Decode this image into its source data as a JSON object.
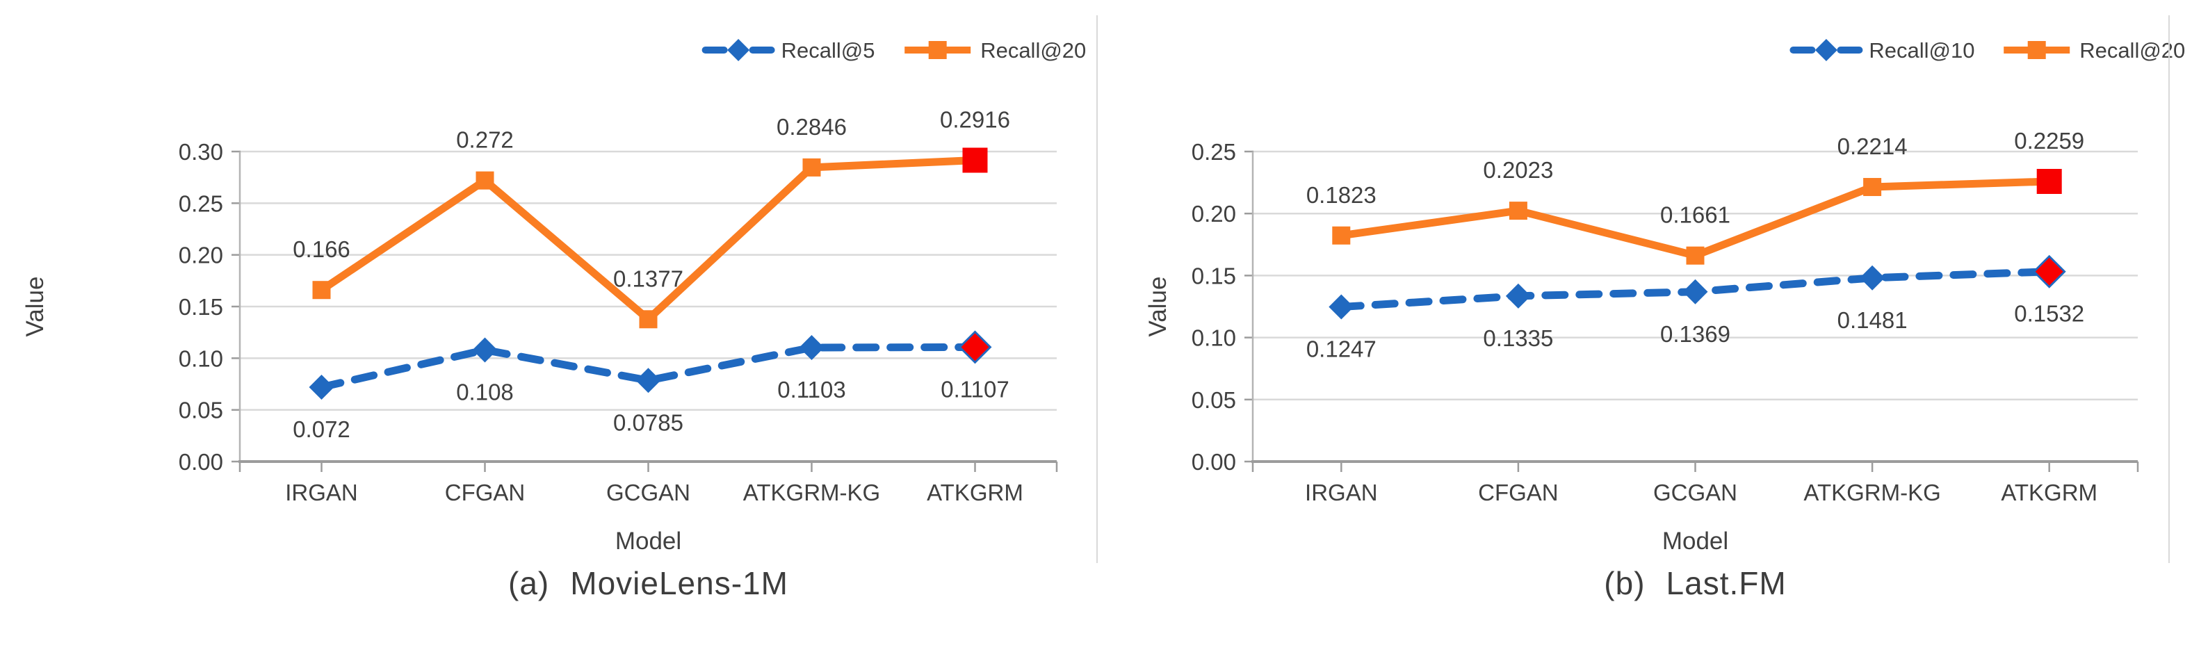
{
  "figure": {
    "background": "#ffffff",
    "divider_color": "#d9d9d9",
    "text_color": "#404040",
    "grid_color": "#d9d9d9",
    "axis_color": "#9c9c9c",
    "highlight_color": "#f80000",
    "blue": "#2069c0",
    "orange": "#fa7d22"
  },
  "chart_data": [
    {
      "type": "line",
      "caption_prefix": "(a)",
      "caption_title": "MovieLens-1M",
      "xlabel": "Model",
      "ylabel": "Value",
      "categories": [
        "IRGAN",
        "CFGAN",
        "GCGAN",
        "ATKGRM-KG",
        "ATKGRM"
      ],
      "ylim": [
        0.0,
        0.3
      ],
      "yticks": [
        0.0,
        0.05,
        0.1,
        0.15,
        0.2,
        0.25,
        0.3
      ],
      "ytick_labels": [
        "0.00",
        "0.05",
        "0.10",
        "0.15",
        "0.20",
        "0.25",
        "0.30"
      ],
      "grid": true,
      "legend_position": "top-right",
      "series": [
        {
          "name": "Recall@5",
          "color": "#2069c0",
          "line_style": "dashed",
          "marker": "diamond",
          "highlight_last": true,
          "highlight_color": "#f80000",
          "label_side": "below",
          "values": [
            0.072,
            0.108,
            0.0785,
            0.1103,
            0.1107
          ],
          "data_labels": [
            "0.072",
            "0.108",
            "0.0785",
            "0.1103",
            "0.1107"
          ]
        },
        {
          "name": "Recall@20",
          "color": "#fa7d22",
          "line_style": "solid",
          "marker": "square",
          "highlight_last": true,
          "highlight_color": "#f80000",
          "label_side": "above",
          "values": [
            0.166,
            0.272,
            0.1377,
            0.2846,
            0.2916
          ],
          "data_labels": [
            "0.166",
            "0.272",
            "0.1377",
            "0.2846",
            "0.2916"
          ]
        }
      ]
    },
    {
      "type": "line",
      "caption_prefix": "(b)",
      "caption_title": "Last.FM",
      "xlabel": "Model",
      "ylabel": "Value",
      "categories": [
        "IRGAN",
        "CFGAN",
        "GCGAN",
        "ATKGRM-KG",
        "ATKGRM"
      ],
      "ylim": [
        0.0,
        0.25
      ],
      "yticks": [
        0.0,
        0.05,
        0.1,
        0.15,
        0.2,
        0.25
      ],
      "ytick_labels": [
        "0.00",
        "0.05",
        "0.10",
        "0.15",
        "0.20",
        "0.25"
      ],
      "grid": true,
      "legend_position": "top-right",
      "series": [
        {
          "name": "Recall@10",
          "color": "#2069c0",
          "line_style": "dashed",
          "marker": "diamond",
          "highlight_last": true,
          "highlight_color": "#f80000",
          "label_side": "below",
          "values": [
            0.1247,
            0.1335,
            0.1369,
            0.1481,
            0.1532
          ],
          "data_labels": [
            "0.1247",
            "0.1335",
            "0.1369",
            "0.1481",
            "0.1532"
          ]
        },
        {
          "name": "Recall@20",
          "color": "#fa7d22",
          "line_style": "solid",
          "marker": "square",
          "highlight_last": true,
          "highlight_color": "#f80000",
          "label_side": "above",
          "values": [
            0.1823,
            0.2023,
            0.1661,
            0.2214,
            0.2259
          ],
          "data_labels": [
            "0.1823",
            "0.2023",
            "0.1661",
            "0.2214",
            "0.2259"
          ]
        }
      ]
    }
  ]
}
